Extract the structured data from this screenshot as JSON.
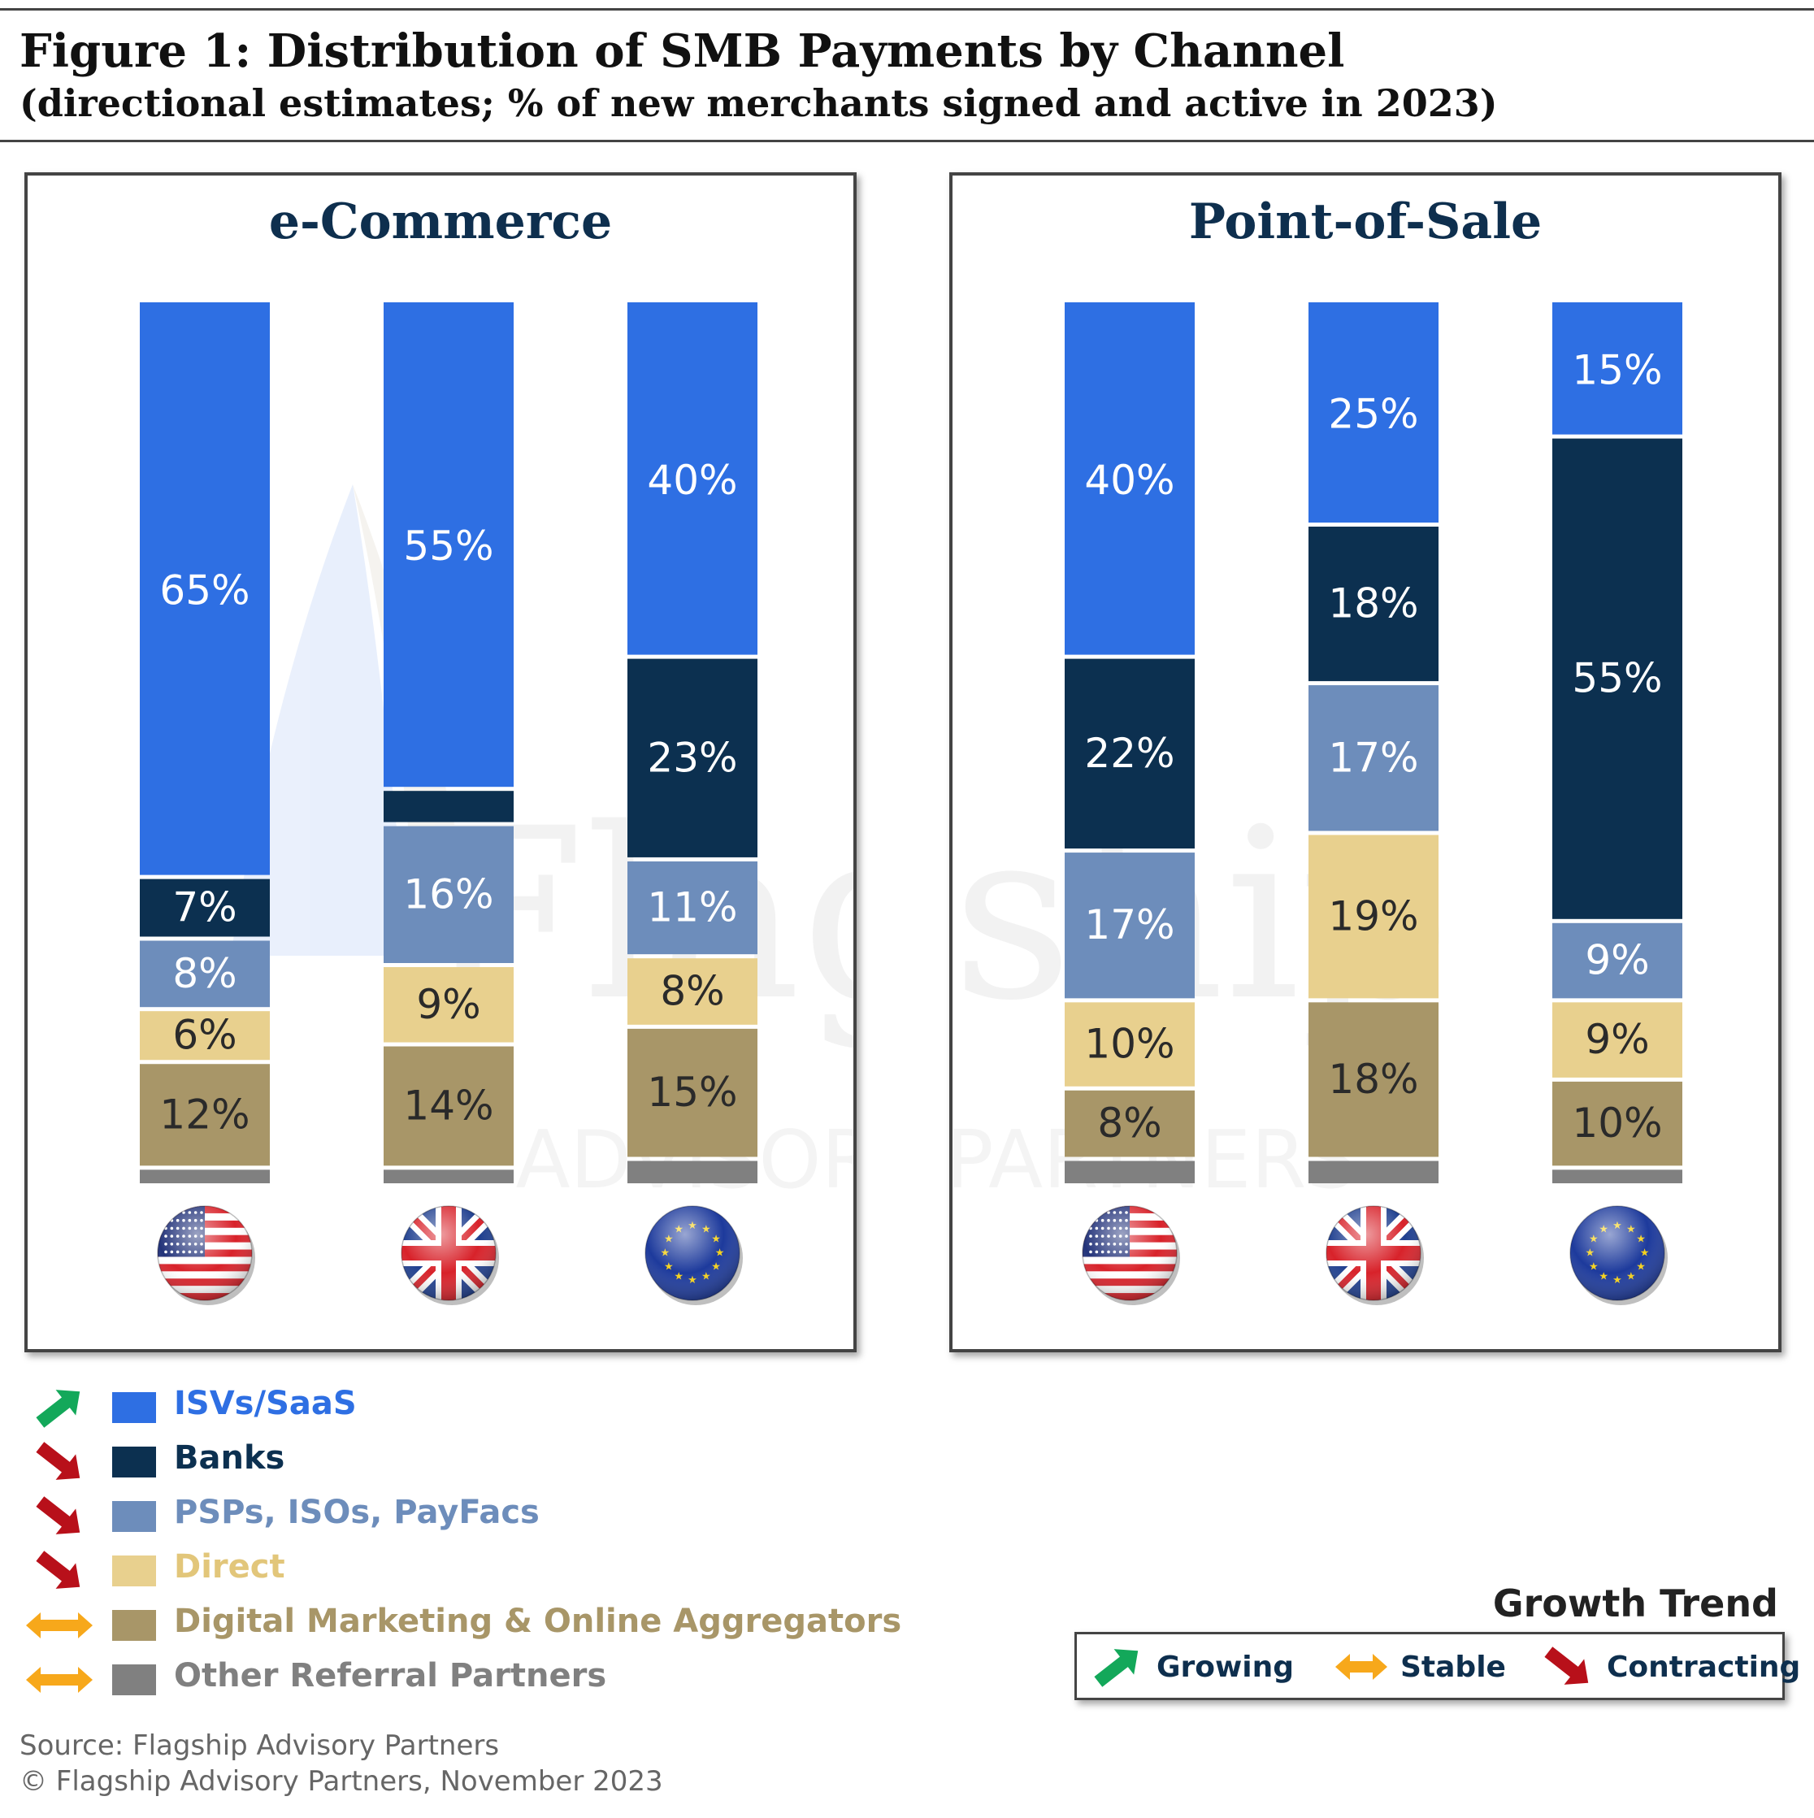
{
  "header": {
    "title": "Figure 1: Distribution of SMB Payments by Channel",
    "subtitle": "(directional estimates; % of new merchants signed and active in 2023)"
  },
  "watermark": {
    "line1": "Flagship",
    "line2": "ADVISORY PARTNERS"
  },
  "colors": {
    "isv": "#2e6fe3",
    "banks": "#0c3050",
    "psp": "#6d8dbb",
    "direct": "#e8d08e",
    "digital": "#a89668",
    "other": "#808080",
    "growing": "#13a85a",
    "stable": "#f7a81b",
    "contracting": "#b8101a"
  },
  "chart_data": [
    {
      "type": "bar",
      "stacked": true,
      "title": "e-Commerce",
      "categories": [
        "US",
        "UK",
        "EU"
      ],
      "category_icons": [
        "us-flag-icon",
        "uk-flag-icon",
        "eu-flag-icon"
      ],
      "ylim": [
        0,
        100
      ],
      "series": [
        {
          "name": "Other Referral Partners",
          "color_key": "other",
          "values": [
            2,
            2,
            3
          ],
          "labels": [
            "",
            "",
            ""
          ]
        },
        {
          "name": "Digital Marketing & Online Aggregators",
          "color_key": "digital",
          "values": [
            12,
            14,
            15
          ],
          "labels": [
            "12%",
            "14%",
            "15%"
          ]
        },
        {
          "name": "Direct",
          "color_key": "direct",
          "values": [
            6,
            9,
            8
          ],
          "labels": [
            "6%",
            "9%",
            "8%"
          ]
        },
        {
          "name": "PSPs, ISOs, PayFacs",
          "color_key": "psp",
          "values": [
            8,
            16,
            11
          ],
          "labels": [
            "8%",
            "16%",
            "11%"
          ]
        },
        {
          "name": "Banks",
          "color_key": "banks",
          "values": [
            7,
            4,
            23
          ],
          "labels": [
            "7%",
            "",
            "23%"
          ]
        },
        {
          "name": "ISVs/SaaS",
          "color_key": "isv",
          "values": [
            65,
            55,
            40
          ],
          "labels": [
            "65%",
            "55%",
            "40%"
          ]
        }
      ]
    },
    {
      "type": "bar",
      "stacked": true,
      "title": "Point-of-Sale",
      "categories": [
        "US",
        "UK",
        "EU"
      ],
      "category_icons": [
        "us-flag-icon",
        "uk-flag-icon",
        "eu-flag-icon"
      ],
      "ylim": [
        0,
        100
      ],
      "series": [
        {
          "name": "Other Referral Partners",
          "color_key": "other",
          "values": [
            3,
            3,
            2
          ],
          "labels": [
            "",
            "",
            ""
          ]
        },
        {
          "name": "Digital Marketing & Online Aggregators",
          "color_key": "digital",
          "values": [
            8,
            18,
            10
          ],
          "labels": [
            "8%",
            "18%",
            "10%"
          ]
        },
        {
          "name": "Direct",
          "color_key": "direct",
          "values": [
            10,
            19,
            9
          ],
          "labels": [
            "10%",
            "19%",
            "9%"
          ]
        },
        {
          "name": "PSPs, ISOs, PayFacs",
          "color_key": "psp",
          "values": [
            17,
            17,
            9
          ],
          "labels": [
            "17%",
            "17%",
            "9%"
          ]
        },
        {
          "name": "Banks",
          "color_key": "banks",
          "values": [
            22,
            18,
            55
          ],
          "labels": [
            "22%",
            "18%",
            "55%"
          ]
        },
        {
          "name": "ISVs/SaaS",
          "color_key": "isv",
          "values": [
            40,
            25,
            15
          ],
          "labels": [
            "40%",
            "25%",
            "15%"
          ]
        }
      ]
    }
  ],
  "legend": [
    {
      "label": "ISVs/SaaS",
      "color_key": "isv",
      "trend": "growing",
      "text_color": "#2e6fe3"
    },
    {
      "label": "Banks",
      "color_key": "banks",
      "trend": "contracting",
      "text_color": "#0c3050"
    },
    {
      "label": "PSPs, ISOs, PayFacs",
      "color_key": "psp",
      "trend": "contracting",
      "text_color": "#6d8dbb"
    },
    {
      "label": "Direct",
      "color_key": "direct",
      "trend": "contracting",
      "text_color": "#e2c67a"
    },
    {
      "label": "Digital Marketing & Online Aggregators",
      "color_key": "digital",
      "trend": "stable",
      "text_color": "#a89668"
    },
    {
      "label": "Other Referral Partners",
      "color_key": "other",
      "trend": "stable",
      "text_color": "#808080"
    }
  ],
  "growth_trend": {
    "title": "Growth Trend",
    "items": [
      {
        "label": "Growing",
        "trend": "growing"
      },
      {
        "label": "Stable",
        "trend": "stable"
      },
      {
        "label": "Contracting",
        "trend": "contracting"
      }
    ]
  },
  "footer": {
    "source": "Source: Flagship Advisory Partners",
    "copyright": "© Flagship Advisory Partners, November 2023"
  }
}
